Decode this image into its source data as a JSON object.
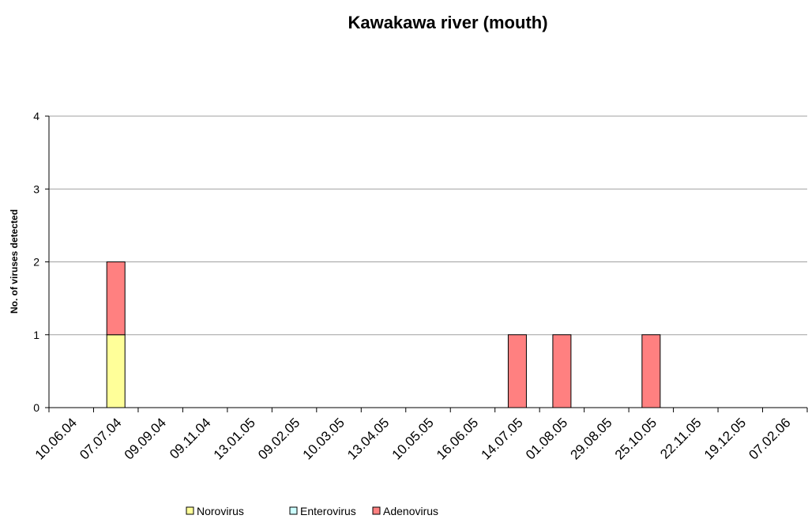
{
  "chart_data": {
    "type": "stacked_bar",
    "title": "Kawakawa river (mouth)",
    "y_label": "No. of viruses detected",
    "categories": [
      "10.06.04",
      "07.07.04",
      "09.09.04",
      "09.11.04",
      "13.01.05",
      "09.02.05",
      "10.03.05",
      "13.04.05",
      "10.05.05",
      "16.06.05",
      "14.07.05",
      "01.08.05",
      "29.08.05",
      "25.10.05",
      "22.11.05",
      "19.12.05",
      "07.02.06"
    ],
    "series": [
      {
        "name": "Norovirus",
        "color": "#ffff99",
        "values": [
          0,
          1,
          0,
          0,
          0,
          0,
          0,
          0,
          0,
          0,
          0,
          0,
          0,
          0,
          0,
          0,
          0
        ]
      },
      {
        "name": "Enterovirus",
        "color": "#ccffff",
        "values": [
          0,
          0,
          0,
          0,
          0,
          0,
          0,
          0,
          0,
          0,
          0,
          0,
          0,
          0,
          0,
          0,
          0
        ]
      },
      {
        "name": "Adenovirus",
        "color": "#ff8080",
        "values": [
          0,
          1,
          0,
          0,
          0,
          0,
          0,
          0,
          0,
          0,
          1,
          1,
          0,
          1,
          0,
          0,
          0
        ]
      }
    ],
    "ylim": [
      0,
      4
    ],
    "yticks": [
      0,
      1,
      2,
      3,
      4
    ],
    "grid": true,
    "legend": "bottom"
  }
}
